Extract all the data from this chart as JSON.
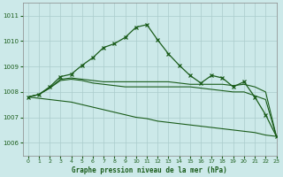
{
  "title": "Graphe pression niveau de la mer (hPa)",
  "background_color": "#cce9e9",
  "grid_color": "#aacccc",
  "line_color": "#1a5c1a",
  "x_min": -0.5,
  "x_max": 23,
  "y_min": 1005.5,
  "y_max": 1011.5,
  "yticks": [
    1006,
    1007,
    1008,
    1009,
    1010,
    1011
  ],
  "xticks": [
    0,
    1,
    2,
    3,
    4,
    5,
    6,
    7,
    8,
    9,
    10,
    11,
    12,
    13,
    14,
    15,
    16,
    17,
    18,
    19,
    20,
    21,
    22,
    23
  ],
  "series_main": [
    1007.8,
    1007.9,
    1008.2,
    1008.6,
    1008.7,
    1009.05,
    1009.35,
    1009.75,
    1009.9,
    1010.15,
    1010.55,
    1010.65,
    1010.05,
    1009.5,
    1009.05,
    1008.65,
    1008.35,
    1008.65,
    1008.55,
    1008.2,
    1008.4,
    1007.8,
    1007.1,
    1006.25
  ],
  "series_flat1": [
    1007.8,
    1007.9,
    1008.15,
    1008.5,
    1008.55,
    1008.5,
    1008.45,
    1008.4,
    1008.4,
    1008.4,
    1008.4,
    1008.4,
    1008.4,
    1008.4,
    1008.35,
    1008.3,
    1008.3,
    1008.3,
    1008.3,
    1008.25,
    1008.3,
    1008.2,
    1008.0,
    1006.25
  ],
  "series_flat2": [
    1007.8,
    1007.9,
    1008.15,
    1008.45,
    1008.5,
    1008.45,
    1008.35,
    1008.3,
    1008.25,
    1008.2,
    1008.2,
    1008.2,
    1008.2,
    1008.2,
    1008.2,
    1008.2,
    1008.15,
    1008.1,
    1008.05,
    1008.0,
    1008.0,
    1007.85,
    1007.7,
    1006.25
  ],
  "series_diag": [
    1007.8,
    1007.75,
    1007.7,
    1007.65,
    1007.6,
    1007.5,
    1007.4,
    1007.3,
    1007.2,
    1007.1,
    1007.0,
    1006.95,
    1006.85,
    1006.8,
    1006.75,
    1006.7,
    1006.65,
    1006.6,
    1006.55,
    1006.5,
    1006.45,
    1006.4,
    1006.3,
    1006.25
  ]
}
